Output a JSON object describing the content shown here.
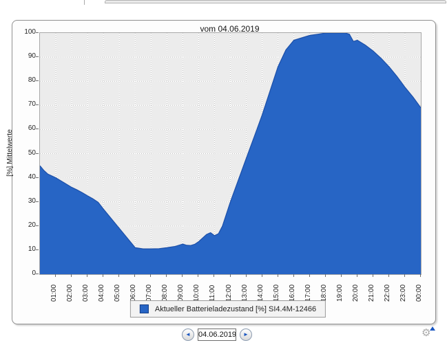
{
  "chart_data": {
    "type": "area",
    "title": "vom 04.06.2019",
    "xlabel": "",
    "ylabel": "[%] Mittelwerte",
    "ylim": [
      0,
      100
    ],
    "x_domain_hours": [
      0,
      24
    ],
    "grid": true,
    "legend_position": "bottom",
    "y_ticks": [
      0,
      10,
      20,
      30,
      40,
      50,
      60,
      70,
      80,
      90,
      100
    ],
    "x_tick_labels": [
      "01:00",
      "02:00",
      "03:00",
      "04:00",
      "05:00",
      "06:00",
      "07:00",
      "08:00",
      "09:00",
      "10:00",
      "11:00",
      "12:00",
      "13:00",
      "14:00",
      "15:00",
      "16:00",
      "17:00",
      "18:00",
      "19:00",
      "20:00",
      "21:00",
      "22:00",
      "23:00",
      "00:00"
    ],
    "series": [
      {
        "name": "Aktueller Batterieladezustand [%] SI4.4M-12466",
        "color": "#2765c5",
        "edge_color": "#1c4fa8",
        "points": [
          [
            0,
            45
          ],
          [
            0.25,
            43
          ],
          [
            0.5,
            41.5
          ],
          [
            1,
            40
          ],
          [
            1.5,
            38
          ],
          [
            2,
            36
          ],
          [
            2.33,
            35
          ],
          [
            2.67,
            33.8
          ],
          [
            3,
            32.5
          ],
          [
            3.33,
            31.3
          ],
          [
            3.67,
            29.8
          ],
          [
            4,
            27
          ],
          [
            4.5,
            23
          ],
          [
            5,
            19
          ],
          [
            5.5,
            15
          ],
          [
            6,
            11
          ],
          [
            6.5,
            10.5
          ],
          [
            7,
            10.5
          ],
          [
            7.5,
            10.6
          ],
          [
            8,
            11
          ],
          [
            8.5,
            11.5
          ],
          [
            9,
            12.5
          ],
          [
            9.25,
            12
          ],
          [
            9.5,
            11.9
          ],
          [
            9.75,
            12.4
          ],
          [
            10,
            13.5
          ],
          [
            10.25,
            15
          ],
          [
            10.5,
            16.5
          ],
          [
            10.75,
            17.2
          ],
          [
            11,
            16
          ],
          [
            11.25,
            16.8
          ],
          [
            11.5,
            20
          ],
          [
            12,
            30
          ],
          [
            12.5,
            39
          ],
          [
            13,
            48
          ],
          [
            13.5,
            57
          ],
          [
            14,
            66
          ],
          [
            14.5,
            76
          ],
          [
            15,
            86
          ],
          [
            15.5,
            93
          ],
          [
            16,
            97
          ],
          [
            16.5,
            98
          ],
          [
            17,
            99
          ],
          [
            17.5,
            99.5
          ],
          [
            18,
            100
          ],
          [
            18.5,
            100
          ],
          [
            19,
            100
          ],
          [
            19.25,
            100
          ],
          [
            19.5,
            99.5
          ],
          [
            19.75,
            96.5
          ],
          [
            20,
            97
          ],
          [
            20.5,
            95
          ],
          [
            21,
            92.5
          ],
          [
            21.5,
            89.5
          ],
          [
            22,
            86
          ],
          [
            22.5,
            82
          ],
          [
            23,
            77.5
          ],
          [
            23.5,
            73.5
          ],
          [
            24,
            69
          ]
        ]
      }
    ]
  },
  "date_nav": {
    "value": "04.06.2019"
  },
  "icons": {
    "prev_arrow": "◄",
    "next_arrow": "►",
    "gear": "⚙",
    "gear_badge": "▲"
  },
  "colors": {
    "plot_bg": "#ececec",
    "grid_white": "#ffffff",
    "grid_dot": "#c6c6c6",
    "panel_border": "#8f8f8f",
    "accent_blue": "#1a56c0"
  }
}
